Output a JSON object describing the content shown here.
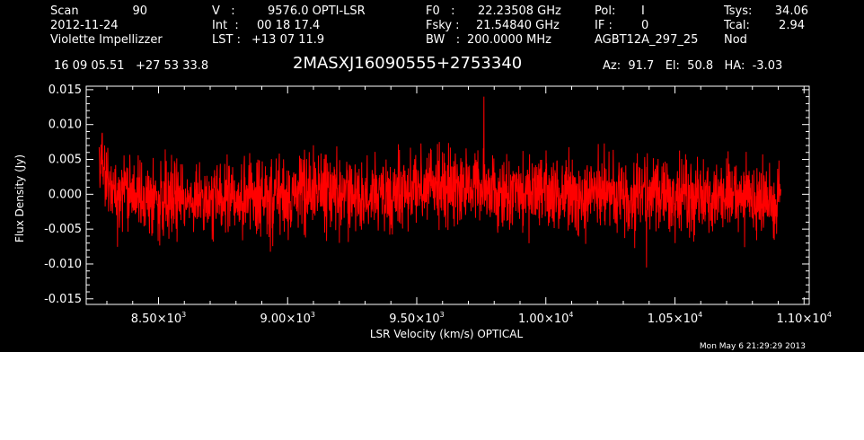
{
  "header": {
    "scan_label": "Scan",
    "scan_value": "90",
    "date": "2012-11-24",
    "observer": "Violette Impellizzer",
    "v_label": "V   :",
    "v_value": "9576.0 OPTI-LSR",
    "int_label": "Int  :",
    "int_value": "00 18 17.4",
    "lst_label": "LST :",
    "lst_value": "+13 07 11.9",
    "f0_label": "F0   :",
    "f0_value": "22.23508 GHz",
    "fsky_label": "Fsky :",
    "fsky_value": "21.54840 GHz",
    "bw_label": "BW   :",
    "bw_value": "200.0000 MHz",
    "pol_label": "Pol:",
    "pol_value": "I",
    "if_label": "IF :",
    "if_value": "0",
    "project": "AGBT12A_297_25",
    "tsys_label": "Tsys:",
    "tsys_value": "34.06",
    "tcal_label": "Tcal:",
    "tcal_value": "2.94",
    "mode": "Nod",
    "ra_dec": "16 09 05.51   +27 53 33.8",
    "source": "2MASXJ16090555+2753340",
    "az_el_ha": "Az:  91.7   El:  50.8   HA:  -3.03"
  },
  "footer": {
    "timestamp": "Mon May  6 21:29:29 2013"
  },
  "chart_data": {
    "type": "line",
    "title": "2MASXJ16090555+2753340",
    "xlabel": "LSR Velocity (km/s) OPTICAL",
    "ylabel": "Flux Density (Jy)",
    "xlim": [
      8220,
      11020
    ],
    "ylim": [
      -0.0158,
      0.0155
    ],
    "x_ticks": [
      8500,
      9000,
      9500,
      10000,
      10500,
      11000
    ],
    "x_tick_labels": [
      {
        "mant": "8.50×10",
        "exp": "3"
      },
      {
        "mant": "9.00×10",
        "exp": "3"
      },
      {
        "mant": "9.50×10",
        "exp": "3"
      },
      {
        "mant": "1.00×10",
        "exp": "4"
      },
      {
        "mant": "1.05×10",
        "exp": "4"
      },
      {
        "mant": "1.10×10",
        "exp": "4"
      }
    ],
    "y_ticks": [
      -0.015,
      -0.01,
      -0.005,
      0.0,
      0.005,
      0.01,
      0.015
    ],
    "y_tick_labels": [
      "-0.015",
      "-0.010",
      "-0.005",
      "0.000",
      "0.005",
      "0.010",
      "0.015"
    ],
    "grid": false,
    "series": [
      {
        "color": "#ff0000",
        "x_start": 8270,
        "x_end": 10910,
        "noise_rms": 0.0033,
        "mean_profile": [
          [
            8270,
            0.0035
          ],
          [
            8320,
            0.001
          ],
          [
            8400,
            -0.0005
          ],
          [
            8500,
            -0.001
          ],
          [
            8600,
            -0.0008
          ],
          [
            8700,
            -0.001
          ],
          [
            8800,
            0.0
          ],
          [
            8900,
            -0.0005
          ],
          [
            9000,
            0.0
          ],
          [
            9100,
            0.0
          ],
          [
            9200,
            0.0005
          ],
          [
            9300,
            0.0
          ],
          [
            9400,
            0.0
          ],
          [
            9500,
            0.0005
          ],
          [
            9600,
            0.001
          ],
          [
            9700,
            0.001
          ],
          [
            9800,
            0.0
          ],
          [
            9900,
            0.0
          ],
          [
            10000,
            0.0
          ],
          [
            10100,
            -0.0005
          ],
          [
            10200,
            0.0
          ],
          [
            10300,
            0.0
          ],
          [
            10400,
            0.0
          ],
          [
            10500,
            0.0
          ],
          [
            10600,
            -0.0005
          ],
          [
            10700,
            0.0
          ],
          [
            10800,
            -0.0005
          ],
          [
            10910,
            -0.0015
          ]
        ],
        "peak_max": 0.014,
        "peak_max_x": 9760,
        "peak_min": -0.0105,
        "peak_min_x": 10390
      }
    ]
  }
}
